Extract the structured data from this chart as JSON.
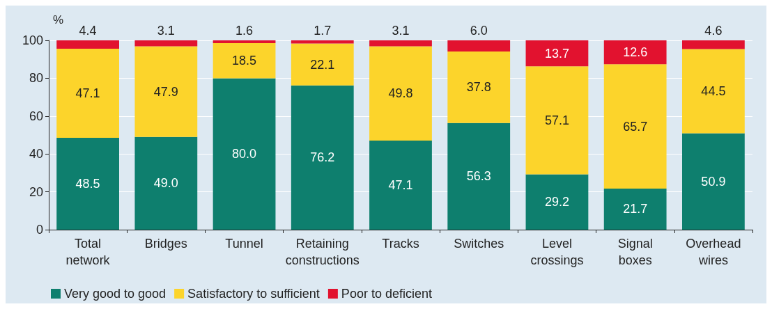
{
  "chart_data": {
    "type": "bar",
    "stacked": true,
    "ylabel": "%",
    "categories": [
      "Total network",
      "Bridges",
      "Tunnel",
      "Retaining constructions",
      "Tracks",
      "Switches",
      "Level crossings",
      "Signal boxes",
      "Overhead wires"
    ],
    "series": [
      {
        "name": "Very good to good",
        "color": "#0e7f6e",
        "values": [
          48.5,
          49.0,
          80.0,
          76.2,
          47.1,
          56.3,
          29.2,
          21.7,
          50.9
        ],
        "value_labels": [
          "48.5",
          "49.0",
          "80.0",
          "76.2",
          "47.1",
          "56.3",
          "29.2",
          "21.7",
          "50.9"
        ]
      },
      {
        "name": "Satisfactory to sufficient",
        "color": "#fcd42b",
        "values": [
          47.1,
          47.9,
          18.5,
          22.1,
          49.8,
          37.8,
          57.1,
          65.7,
          44.5
        ],
        "value_labels": [
          "47.1",
          "47.9",
          "18.5",
          "22.1",
          "49.8",
          "37.8",
          "57.1",
          "65.7",
          "44.5"
        ]
      },
      {
        "name": "Poor to deficient",
        "color": "#e2122f",
        "values": [
          4.4,
          3.1,
          1.6,
          1.7,
          3.1,
          6.0,
          13.7,
          12.6,
          4.6
        ],
        "value_labels": [
          "4.4",
          "3.1",
          "1.6",
          "1.7",
          "3.1",
          "6.0",
          "13.7",
          "12.6",
          "4.6"
        ]
      }
    ],
    "ylim": [
      0,
      100
    ],
    "yticks": [
      0,
      20,
      40,
      60,
      80,
      100
    ],
    "grid": "y",
    "legend": "bottom left"
  }
}
